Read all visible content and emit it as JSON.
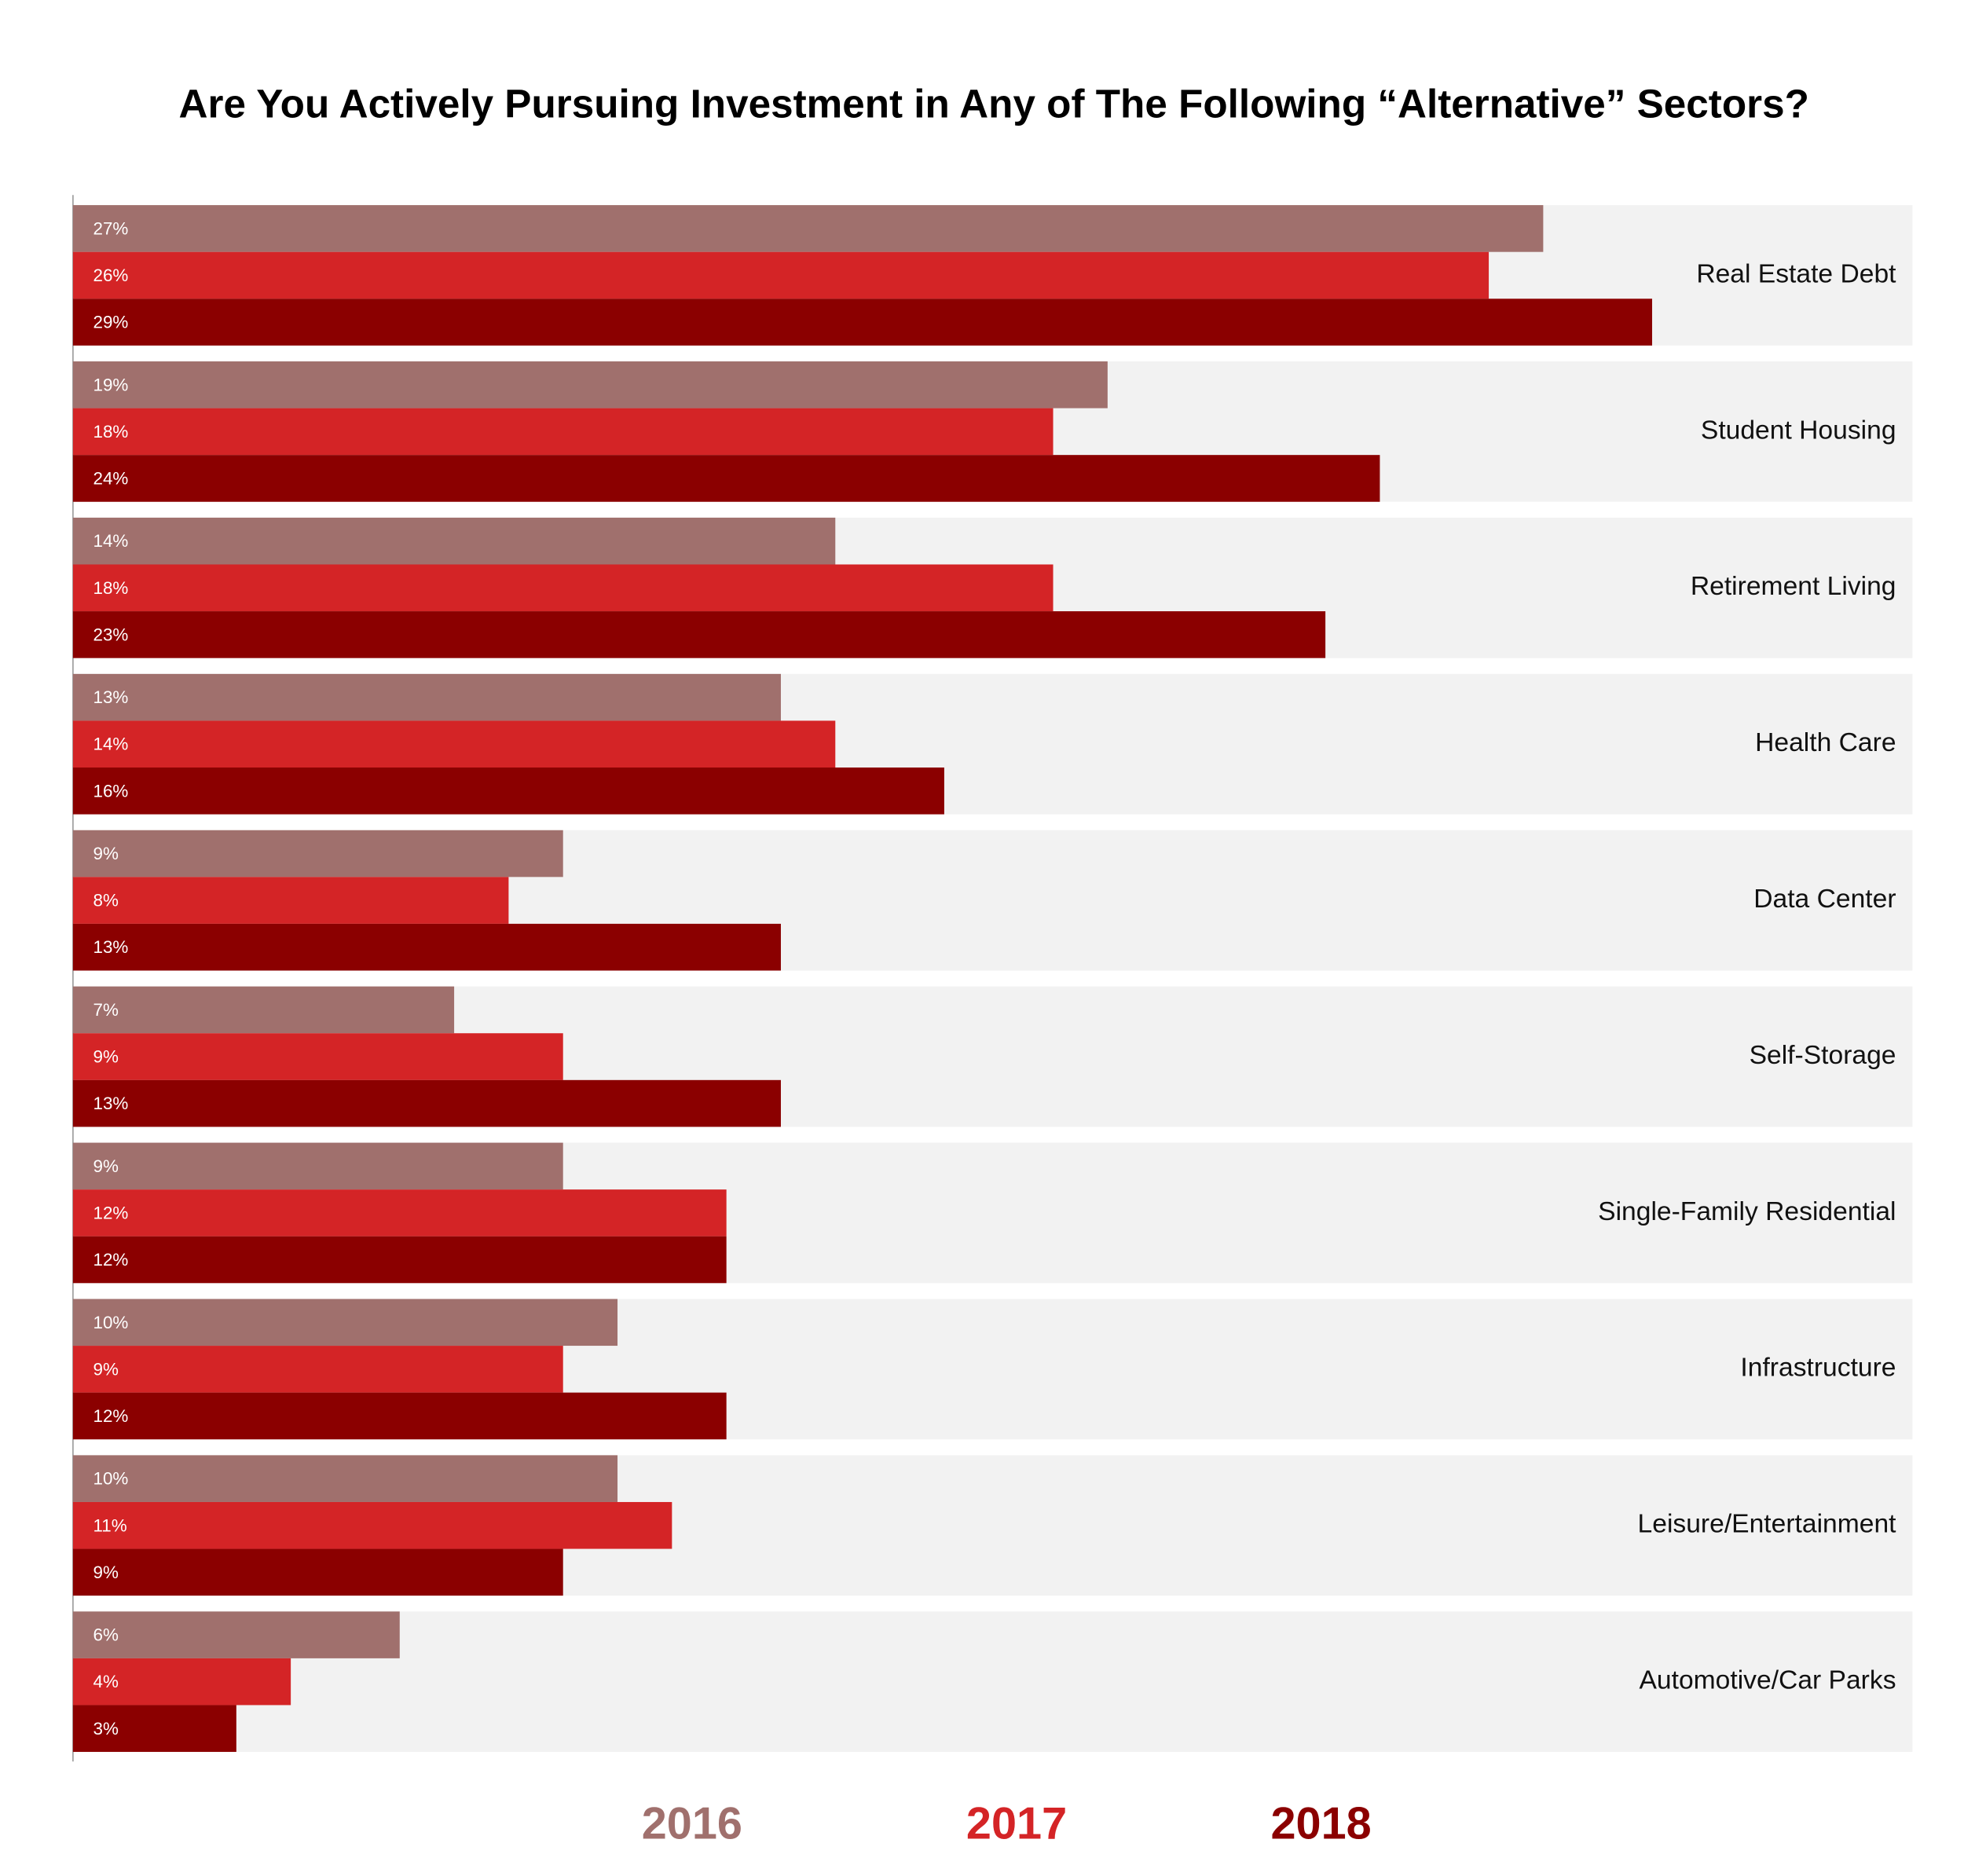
{
  "chart_data": {
    "type": "bar",
    "orientation": "horizontal",
    "title": "Are You Actively Pursuing Investment in Any of The Following “Alternative” Sectors?",
    "categories": [
      "Real Estate Debt",
      "Student Housing",
      "Retirement Living",
      "Health Care",
      "Data Center",
      "Self-Storage",
      "Single-Family Residential",
      "Infrastructure",
      "Leisure/Entertainment",
      "Automotive/Car Parks"
    ],
    "series": [
      {
        "name": "2016",
        "color": "#a0706d",
        "values": [
          27,
          19,
          14,
          13,
          9,
          7,
          9,
          10,
          10,
          6
        ],
        "value_labels": [
          "27%",
          "19%",
          "14%",
          "13%",
          "9%",
          "7%",
          "9%",
          "10%",
          "10%",
          "6%"
        ]
      },
      {
        "name": "2017",
        "color": "#d42426",
        "values": [
          26,
          18,
          18,
          14,
          8,
          9,
          12,
          9,
          11,
          4
        ],
        "value_labels": [
          "26%",
          "18%",
          "18%",
          "14%",
          "8%",
          "9%",
          "12%",
          "9%",
          "11%",
          "4%"
        ]
      },
      {
        "name": "2018",
        "color": "#8b0000",
        "values": [
          29,
          24,
          23,
          16,
          13,
          13,
          12,
          12,
          9,
          3
        ],
        "value_labels": [
          "29%",
          "24%",
          "23%",
          "16%",
          "13%",
          "13%",
          "12%",
          "12%",
          "9%",
          "3%"
        ]
      }
    ]
  }
}
